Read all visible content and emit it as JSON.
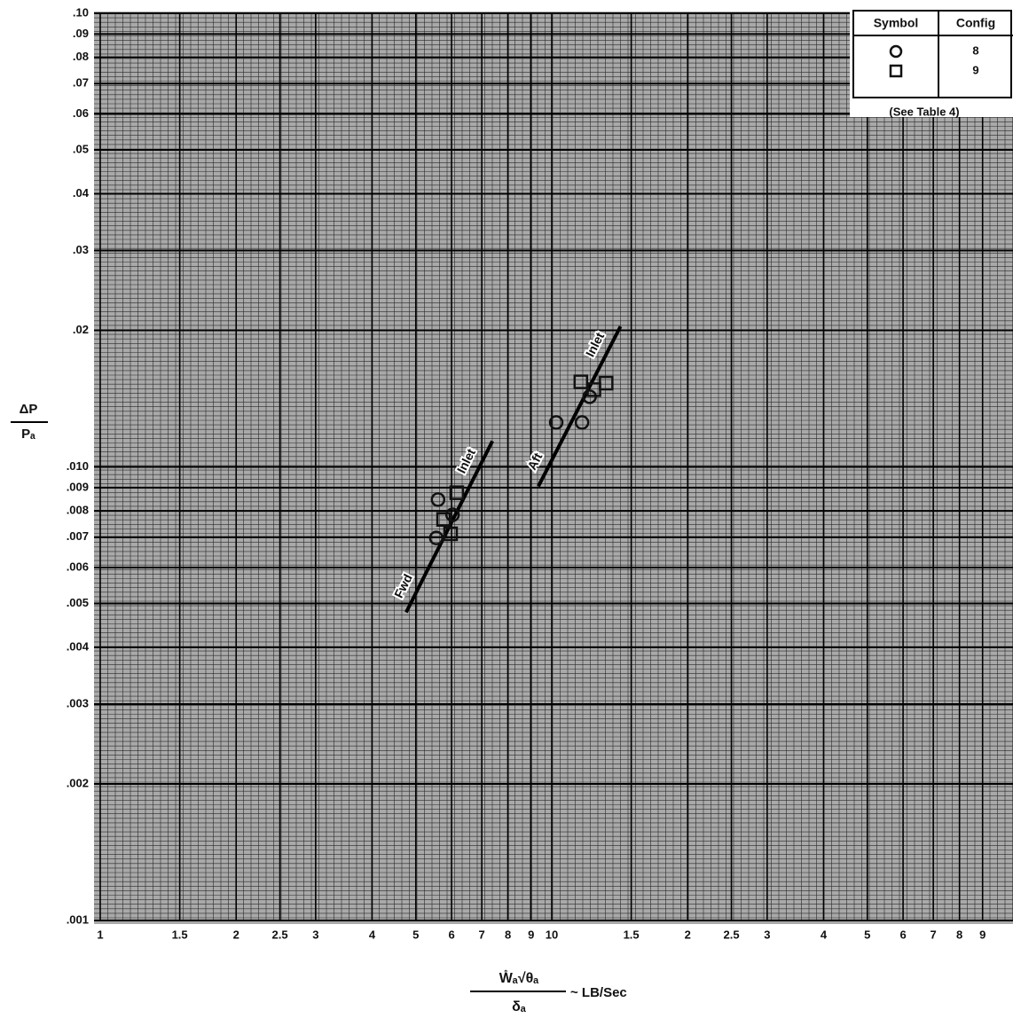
{
  "chart_data": {
    "type": "scatter",
    "log_x": true,
    "log_y": true,
    "grid": true,
    "legend": "upper right",
    "legend_header": [
      "Symbol",
      "Config"
    ],
    "legend_note": "(See Table 4)",
    "y_label": {
      "numerator": "ΔP",
      "denominator": "Pₐ"
    },
    "x_label": {
      "numerator": "W̊ₐ√θₐ",
      "denominator": "δₐ",
      "unit": "~ LB/Sec"
    },
    "xlim": [
      1,
      100
    ],
    "ylim": [
      0.001,
      0.1
    ],
    "xticks": [
      1,
      1.5,
      2,
      2.5,
      3,
      4,
      5,
      6,
      7,
      8,
      9,
      10,
      {
        "value": 15,
        "label": "1.5"
      },
      {
        "value": 20,
        "label": "2"
      },
      {
        "value": 25,
        "label": "2.5"
      },
      {
        "value": 30,
        "label": "3"
      },
      {
        "value": 40,
        "label": "4"
      },
      {
        "value": 50,
        "label": "5"
      },
      {
        "value": 60,
        "label": "6"
      },
      {
        "value": 70,
        "label": "7"
      },
      {
        "value": 80,
        "label": "8"
      },
      {
        "value": 90,
        "label": "9"
      }
    ],
    "yticks": [
      {
        "value": 0.1,
        "label": ".10"
      },
      {
        "value": 0.09,
        "label": ".09"
      },
      {
        "value": 0.08,
        "label": ".08"
      },
      {
        "value": 0.07,
        "label": ".07"
      },
      {
        "value": 0.06,
        "label": ".06"
      },
      {
        "value": 0.05,
        "label": ".05"
      },
      {
        "value": 0.04,
        "label": ".04"
      },
      {
        "value": 0.03,
        "label": ".03"
      },
      {
        "value": 0.02,
        "label": ".02"
      },
      {
        "value": 0.01,
        "label": ".010"
      },
      {
        "value": 0.009,
        "label": ".009"
      },
      {
        "value": 0.008,
        "label": ".008"
      },
      {
        "value": 0.007,
        "label": ".007"
      },
      {
        "value": 0.006,
        "label": ".006"
      },
      {
        "value": 0.005,
        "label": ".005"
      },
      {
        "value": 0.004,
        "label": ".004"
      },
      {
        "value": 0.003,
        "label": ".003"
      },
      {
        "value": 0.002,
        "label": ".002"
      },
      {
        "value": 0.001,
        "label": ".001"
      }
    ],
    "series": [
      {
        "name": "8",
        "marker": "circle",
        "color": "#111111",
        "x": [
          5.6,
          6.03,
          5.55,
          10.23,
          11.67,
          12.13
        ],
        "values": [
          0.00847,
          0.00784,
          0.00697,
          0.01253,
          0.01253,
          0.01428
        ]
      },
      {
        "name": "9",
        "marker": "square",
        "color": "#111111",
        "x": [
          5.76,
          6.16,
          5.97,
          11.6,
          13.2,
          12.4
        ],
        "values": [
          0.00766,
          0.00877,
          0.00712,
          0.0154,
          0.0153,
          0.0148
        ]
      }
    ],
    "fit_lines": [
      {
        "start_label": "Fwd",
        "end_label": "Inlet",
        "x": [
          4.76,
          7.39
        ],
        "values": [
          0.00478,
          0.0114
        ]
      },
      {
        "start_label": "Aft",
        "end_label": "Inlet",
        "x": [
          9.34,
          14.2
        ],
        "values": [
          0.00906,
          0.0204
        ]
      }
    ]
  }
}
